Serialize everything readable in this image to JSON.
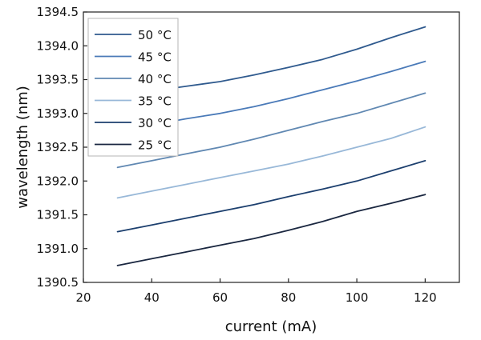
{
  "chart_data": {
    "type": "line",
    "title": "",
    "xlabel": "current (mA)",
    "ylabel": "wavelength (nm)",
    "xlim": [
      20,
      130
    ],
    "ylim": [
      1390.5,
      1394.5
    ],
    "x_ticks": [
      20,
      40,
      60,
      80,
      100,
      120
    ],
    "y_ticks": [
      1390.5,
      1391.0,
      1391.5,
      1392.0,
      1392.5,
      1393.0,
      1393.5,
      1394.0,
      1394.5
    ],
    "grid": false,
    "legend_position": "top-left",
    "x": [
      30,
      40,
      50,
      60,
      70,
      80,
      90,
      100,
      110,
      120
    ],
    "series": [
      {
        "name": "50 °C",
        "color": "#2f5a8e",
        "values": [
          1393.25,
          1393.33,
          1393.4,
          1393.47,
          1393.57,
          1393.68,
          1393.8,
          1393.95,
          1394.12,
          1394.28
        ]
      },
      {
        "name": "45 °C",
        "color": "#4a7ab8",
        "values": [
          1392.75,
          1392.83,
          1392.92,
          1393.0,
          1393.1,
          1393.22,
          1393.35,
          1393.48,
          1393.62,
          1393.77
        ]
      },
      {
        "name": "40 °C",
        "color": "#6088b2",
        "values": [
          1392.2,
          1392.3,
          1392.4,
          1392.5,
          1392.62,
          1392.75,
          1392.88,
          1393.0,
          1393.15,
          1393.3
        ]
      },
      {
        "name": "35 °C",
        "color": "#98b8d8",
        "values": [
          1391.75,
          1391.85,
          1391.95,
          1392.05,
          1392.15,
          1392.25,
          1392.37,
          1392.5,
          1392.63,
          1392.8
        ]
      },
      {
        "name": "30 °C",
        "color": "#1c3f6e",
        "values": [
          1391.25,
          1391.35,
          1391.45,
          1391.55,
          1391.65,
          1391.77,
          1391.88,
          1392.0,
          1392.15,
          1392.3
        ]
      },
      {
        "name": "25 °C",
        "color": "#1a2740",
        "values": [
          1390.75,
          1390.85,
          1390.95,
          1391.05,
          1391.15,
          1391.27,
          1391.4,
          1391.55,
          1391.67,
          1391.8
        ]
      }
    ]
  }
}
